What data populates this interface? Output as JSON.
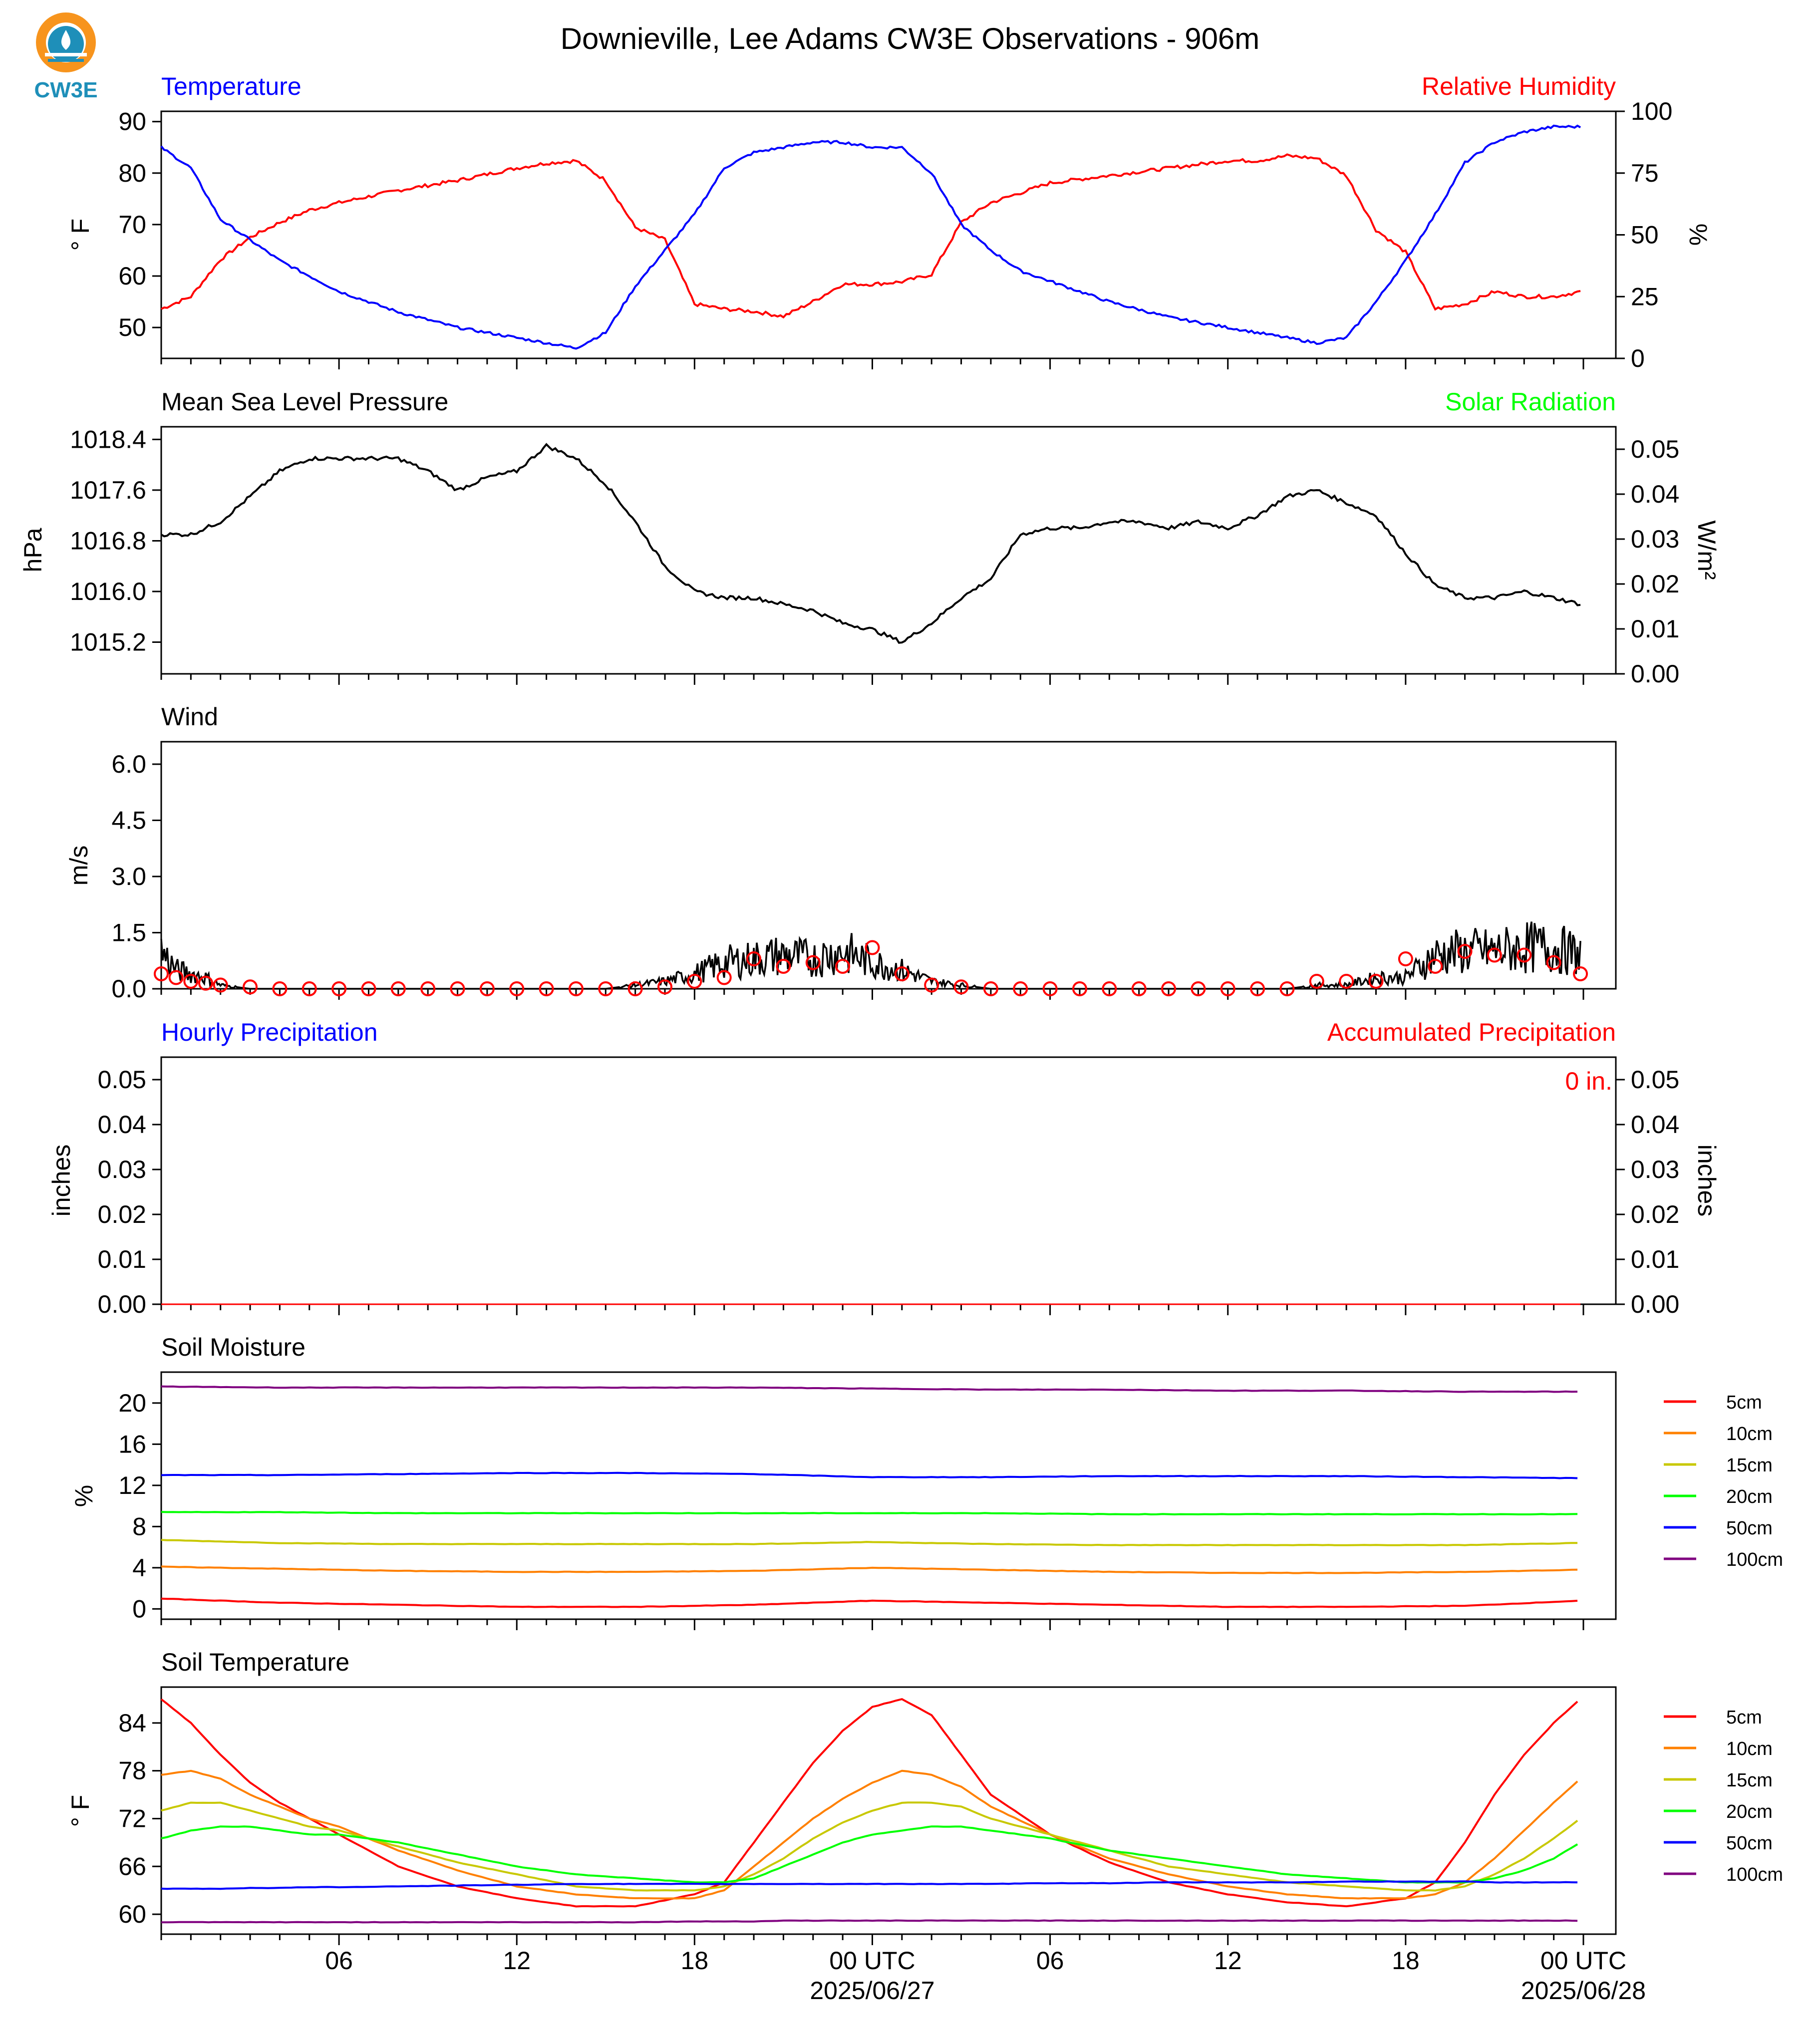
{
  "title": "Downieville, Lee Adams CW3E Observations - 906m",
  "logo": {
    "text": "CW3E",
    "icon": "cw3e-logo-icon",
    "colors": {
      "sun": "#f7941d",
      "water": "#1e8fb9",
      "text": "#1e8fb9"
    }
  },
  "x_axis": {
    "hour_ticks": [
      "06",
      "12",
      "18",
      "00 UTC",
      "06",
      "12",
      "18",
      "00 UTC"
    ],
    "date_labels": [
      "2025/06/27",
      "2025/06/28"
    ]
  },
  "panels": {
    "temp_rh": {
      "left_label": "Temperature",
      "right_label": "Relative Humidity",
      "left_unit": "° F",
      "right_unit": "%",
      "left_ticks": [
        "50",
        "60",
        "70",
        "80",
        "90"
      ],
      "right_ticks": [
        "0",
        "25",
        "50",
        "75",
        "100"
      ]
    },
    "pressure": {
      "left_label": "Mean Sea Level Pressure",
      "right_label": "Solar Radiation",
      "left_unit": "hPa",
      "right_unit": "W/m²",
      "left_ticks": [
        "1015.2",
        "1016.0",
        "1016.8",
        "1017.6",
        "1018.4"
      ],
      "right_ticks": [
        "0.00",
        "0.01",
        "0.02",
        "0.03",
        "0.04",
        "0.05"
      ]
    },
    "wind": {
      "left_label": "Wind",
      "left_unit": "m/s",
      "left_ticks": [
        "0.0",
        "1.5",
        "3.0",
        "4.5",
        "6.0"
      ]
    },
    "precip": {
      "left_label": "Hourly Precipitation",
      "right_label": "Accumulated Precipitation",
      "left_unit": "inches",
      "right_unit": "inches",
      "accum_text": "0 in.",
      "left_ticks": [
        "0.00",
        "0.01",
        "0.02",
        "0.03",
        "0.04",
        "0.05"
      ],
      "right_ticks": [
        "0.00",
        "0.01",
        "0.02",
        "0.03",
        "0.04",
        "0.05"
      ]
    },
    "soil_moisture": {
      "left_label": "Soil Moisture",
      "left_unit": "%",
      "left_ticks": [
        "0",
        "4",
        "8",
        "12",
        "16",
        "20"
      ]
    },
    "soil_temp": {
      "left_label": "Soil Temperature",
      "left_unit": "° F",
      "left_ticks": [
        "60",
        "66",
        "72",
        "78",
        "84"
      ]
    }
  },
  "legend": [
    {
      "name": "5cm",
      "color": "#ff0000"
    },
    {
      "name": "10cm",
      "color": "#ff8000"
    },
    {
      "name": "15cm",
      "color": "#c8c800"
    },
    {
      "name": "20cm",
      "color": "#00ff00"
    },
    {
      "name": "50cm",
      "color": "#0000ff"
    },
    {
      "name": "100cm",
      "color": "#800080"
    }
  ],
  "colors": {
    "temperature": "#0000ff",
    "humidity": "#ff0000",
    "solar": "#00ff00",
    "pressure": "#000000",
    "wind": "#000000",
    "wind_hourly": "#ff0000",
    "hourly_precip": "#0000ff",
    "accum_precip": "#ff0000"
  },
  "chart_data": [
    {
      "type": "line",
      "name": "Temperature / Relative Humidity",
      "x_hours": [
        0,
        1,
        2,
        3,
        4,
        5,
        6,
        8,
        10,
        12,
        13,
        14,
        15,
        16,
        17,
        18,
        19,
        20,
        21,
        22,
        23,
        24,
        25,
        26,
        27,
        28,
        29,
        30,
        32,
        34,
        36,
        37,
        38,
        39,
        40,
        41,
        42,
        43,
        44,
        45,
        46,
        47,
        47.9
      ],
      "series": [
        {
          "name": "Temperature",
          "axis": "left",
          "unit": "F",
          "values": [
            85,
            81,
            71,
            67,
            63,
            60,
            57,
            53,
            50,
            48,
            47,
            46,
            49,
            58,
            65,
            72,
            81,
            84,
            85,
            86,
            86,
            85,
            85,
            80,
            70,
            65,
            61,
            59,
            55,
            52,
            50,
            49,
            48,
            47,
            48,
            55,
            63,
            72,
            82,
            86,
            88,
            89,
            89
          ]
        },
        {
          "name": "Relative Humidity",
          "axis": "right",
          "unit": "%",
          "values": [
            20,
            25,
            40,
            49,
            55,
            60,
            63,
            68,
            72,
            77,
            79,
            80,
            72,
            53,
            48,
            22,
            20,
            19,
            17,
            23,
            30,
            30,
            31,
            34,
            55,
            63,
            67,
            71,
            74,
            77,
            80,
            80,
            82,
            81,
            74,
            52,
            43,
            20,
            22,
            27,
            25,
            25,
            27
          ]
        }
      ],
      "ylim_left": [
        44,
        92
      ],
      "ylim_right": [
        0,
        100
      ]
    },
    {
      "type": "line",
      "name": "Mean Sea Level Pressure",
      "x_hours": [
        0,
        1,
        2,
        3,
        4,
        5,
        6,
        7,
        8,
        9,
        10,
        11,
        12,
        13,
        14,
        15,
        16,
        17,
        18,
        19,
        20,
        21,
        22,
        23,
        24,
        25,
        26,
        27,
        28,
        29,
        30,
        31,
        32,
        33,
        34,
        35,
        36,
        37,
        38,
        39,
        40,
        41,
        42,
        43,
        44,
        45,
        46,
        47,
        47.9
      ],
      "series": [
        {
          "name": "Pressure",
          "axis": "left",
          "unit": "hPa",
          "values": [
            1016.9,
            1016.9,
            1017.1,
            1017.5,
            1017.9,
            1018.1,
            1018.1,
            1018.1,
            1018.1,
            1017.9,
            1017.6,
            1017.8,
            1017.9,
            1018.3,
            1018.1,
            1017.7,
            1017.1,
            1016.4,
            1016.0,
            1015.9,
            1015.9,
            1015.8,
            1015.7,
            1015.5,
            1015.4,
            1015.2,
            1015.5,
            1015.9,
            1016.2,
            1016.9,
            1017.0,
            1017.0,
            1017.1,
            1017.1,
            1017.0,
            1017.1,
            1017.0,
            1017.2,
            1017.5,
            1017.6,
            1017.4,
            1017.2,
            1016.6,
            1016.1,
            1015.9,
            1015.9,
            1016.0,
            1015.9,
            1015.8
          ]
        }
      ],
      "ylim_left": [
        1014.7,
        1018.6
      ],
      "ylim_right": [
        0,
        0.055
      ]
    },
    {
      "type": "line",
      "name": "Wind",
      "x_hours": [
        0,
        0.5,
        1,
        1.5,
        2,
        3,
        4,
        5,
        6,
        7,
        8,
        9,
        10,
        11,
        12,
        13,
        14,
        15,
        16,
        17,
        18,
        19,
        20,
        21,
        22,
        23,
        24,
        25,
        26,
        27,
        28,
        29,
        30,
        31,
        32,
        33,
        34,
        35,
        36,
        37,
        38,
        39,
        40,
        41,
        42,
        43,
        44,
        45,
        46,
        47,
        47.9
      ],
      "series": [
        {
          "name": "Wind speed",
          "axis": "left",
          "unit": "m/s",
          "values": [
            1.0,
            0.5,
            0.4,
            0.3,
            0.1,
            0,
            0,
            0,
            0,
            0,
            0,
            0,
            0,
            0,
            0,
            0,
            0,
            0,
            0.1,
            0.2,
            0.4,
            0.7,
            0.8,
            0.9,
            0.8,
            1.0,
            0.7,
            0.5,
            0.2,
            0.1,
            0,
            0,
            0,
            0,
            0,
            0,
            0,
            0,
            0,
            0,
            0,
            0.1,
            0.1,
            0.3,
            0.3,
            0.9,
            1.0,
            1.0,
            1.1,
            1.1,
            0.9
          ]
        },
        {
          "name": "Hourly wind",
          "axis": "left",
          "unit": "m/s",
          "values": [
            0.4,
            0.3,
            0.2,
            0.15,
            0.1,
            0.05,
            0,
            0,
            0,
            0,
            0,
            0,
            0,
            0,
            0,
            0,
            0,
            0,
            0,
            0.05,
            0.2,
            0.3,
            0.8,
            0.6,
            0.7,
            0.6,
            1.1,
            0.4,
            0.1,
            0.05,
            0,
            0,
            0,
            0,
            0,
            0,
            0,
            0,
            0,
            0,
            0,
            0.2,
            0.2,
            0.2,
            0.8,
            0.6,
            1.0,
            0.9,
            0.9,
            0.7,
            0.4
          ]
        }
      ],
      "ylim_left": [
        0,
        6.6
      ]
    },
    {
      "type": "bar",
      "name": "Precipitation",
      "x_hours": [
        0,
        47.9
      ],
      "series": [
        {
          "name": "Hourly Precipitation",
          "axis": "left",
          "unit": "inches",
          "values": [
            0,
            0
          ]
        },
        {
          "name": "Accumulated Precipitation",
          "axis": "right",
          "unit": "inches",
          "values": [
            0,
            0
          ]
        }
      ],
      "ylim_left": [
        0,
        0.055
      ],
      "ylim_right": [
        0,
        0.055
      ]
    },
    {
      "type": "line",
      "name": "Soil Moisture",
      "x_hours": [
        0,
        4,
        8,
        12,
        16,
        20,
        24,
        28,
        32,
        36,
        40,
        44,
        47.9
      ],
      "series": [
        {
          "name": "5cm",
          "unit": "%",
          "values": [
            1.0,
            0.6,
            0.4,
            0.2,
            0.2,
            0.4,
            0.8,
            0.6,
            0.4,
            0.2,
            0.2,
            0.3,
            0.8
          ]
        },
        {
          "name": "10cm",
          "unit": "%",
          "values": [
            4.1,
            3.9,
            3.7,
            3.6,
            3.6,
            3.7,
            4.0,
            3.8,
            3.6,
            3.5,
            3.5,
            3.6,
            3.8
          ]
        },
        {
          "name": "15cm",
          "unit": "%",
          "values": [
            6.7,
            6.4,
            6.3,
            6.3,
            6.3,
            6.3,
            6.5,
            6.3,
            6.2,
            6.2,
            6.2,
            6.2,
            6.4
          ]
        },
        {
          "name": "20cm",
          "unit": "%",
          "values": [
            9.4,
            9.4,
            9.3,
            9.3,
            9.3,
            9.3,
            9.3,
            9.3,
            9.2,
            9.2,
            9.2,
            9.2,
            9.2
          ]
        },
        {
          "name": "50cm",
          "unit": "%",
          "values": [
            13.0,
            13.0,
            13.1,
            13.2,
            13.2,
            13.1,
            12.8,
            12.8,
            12.9,
            12.9,
            12.9,
            12.8,
            12.7
          ]
        },
        {
          "name": "100cm",
          "unit": "%",
          "values": [
            21.6,
            21.5,
            21.5,
            21.5,
            21.5,
            21.5,
            21.4,
            21.3,
            21.3,
            21.2,
            21.2,
            21.1,
            21.1
          ]
        }
      ],
      "ylim_left": [
        -1,
        23
      ]
    },
    {
      "type": "line",
      "name": "Soil Temperature",
      "x_hours": [
        0,
        1,
        2,
        3,
        4,
        5,
        6,
        8,
        10,
        12,
        14,
        16,
        18,
        19,
        20,
        21,
        22,
        23,
        24,
        25,
        26,
        27,
        28,
        30,
        32,
        34,
        36,
        38,
        40,
        42,
        43,
        44,
        45,
        46,
        47,
        47.9
      ],
      "series": [
        {
          "name": "5cm",
          "unit": "F",
          "values": [
            87,
            84,
            80,
            76.5,
            74,
            72,
            70,
            66,
            63.5,
            62,
            61,
            61,
            62.5,
            64,
            69,
            74,
            79,
            83,
            86,
            87,
            85,
            80,
            75,
            70,
            66.5,
            64,
            62.5,
            61.5,
            61,
            62,
            64,
            69,
            75,
            80,
            84,
            87
          ]
        },
        {
          "name": "10cm",
          "unit": "F",
          "values": [
            77.5,
            78,
            77,
            75,
            73.5,
            72,
            71,
            68,
            65.5,
            63.5,
            62.5,
            62,
            62,
            63,
            66,
            69,
            72,
            74.5,
            76.5,
            78,
            77.5,
            76,
            73.5,
            70,
            67,
            65,
            63.5,
            62.5,
            62,
            62,
            62.5,
            64,
            67,
            70.5,
            74,
            77
          ]
        },
        {
          "name": "15cm",
          "unit": "F",
          "values": [
            73,
            74,
            74,
            73,
            72,
            71,
            70.5,
            68.5,
            66.5,
            65,
            63.5,
            63,
            63,
            63.5,
            65,
            67,
            69.5,
            71.5,
            73,
            74,
            74,
            73.5,
            72,
            70,
            68,
            66,
            65,
            64,
            63.5,
            63,
            63,
            63.5,
            65,
            67,
            69.5,
            72
          ]
        },
        {
          "name": "20cm",
          "unit": "F",
          "values": [
            69.5,
            70.5,
            71,
            71,
            70.5,
            70,
            70,
            69,
            67.5,
            66,
            65,
            64.5,
            64,
            64,
            64.5,
            66,
            67.5,
            69,
            70,
            70.5,
            71,
            71,
            70.5,
            69.5,
            68,
            67,
            66,
            65,
            64.5,
            64,
            64,
            64,
            64.5,
            65.5,
            67,
            69
          ]
        },
        {
          "name": "50cm",
          "unit": "F",
          "values": [
            63.2,
            63.2,
            63.2,
            63.3,
            63.3,
            63.4,
            63.4,
            63.5,
            63.6,
            63.7,
            63.8,
            63.8,
            63.8,
            63.8,
            63.8,
            63.8,
            63.8,
            63.8,
            63.8,
            63.8,
            63.8,
            63.8,
            63.8,
            63.9,
            63.9,
            64,
            64,
            64,
            64.1,
            64.1,
            64.1,
            64.1,
            64,
            64,
            64,
            64
          ]
        },
        {
          "name": "100cm",
          "unit": "F",
          "values": [
            59,
            59,
            59,
            59,
            59,
            59,
            59,
            59,
            59,
            59,
            59,
            59,
            59.1,
            59.1,
            59.1,
            59.2,
            59.2,
            59.2,
            59.2,
            59.2,
            59.2,
            59.2,
            59.2,
            59.2,
            59.2,
            59.2,
            59.2,
            59.2,
            59.2,
            59.2,
            59.2,
            59.2,
            59.2,
            59.2,
            59.2,
            59.2
          ]
        }
      ],
      "ylim_left": [
        57.5,
        88.5
      ]
    }
  ]
}
